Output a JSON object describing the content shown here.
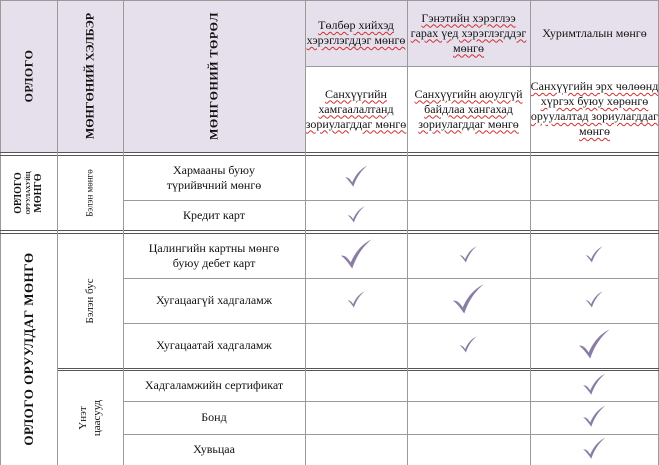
{
  "colors": {
    "header_bg": "#e6e0ec",
    "check": "#8a7ca3",
    "grid": "#9a9a9a"
  },
  "headers": {
    "income": "ОРЛОГО",
    "money_tool": "МӨНГӨНИЙ ХЭЛБЭР",
    "money_type": "МӨНГӨНИЙ ТӨРӨЛ",
    "col1_top": "Төлбөр хийхэд хэрэглэгддэг мөнгө",
    "col2_top": "Гэнэтийн хэрэглээ гарах үед хэрэглэгддэг мөнгө",
    "col3_top": "Хуримтлалын мөнгө",
    "col1_sub": "Санхүүгийн хамгаалалтанд зориулагддаг мөнгө",
    "col2_sub": "Санхүүгийн аюулгүй байдлаа хангахад зориулагддаг мөнгө",
    "col3_sub": "Санхүүгийн эрх чөлөөнд хүргэх буюу хөрөнгө оруулалтад зориулагддаг мөнгө"
  },
  "groups": {
    "income_money_line1": "ОРЛОГО",
    "income_money_line2": "ОРУУЛАХУЙЦ",
    "income_money_line3": "МӨНГӨ",
    "investing_money": "ОРЛОГО ОРУУЛДАГ МӨНГӨ",
    "cash": "Бэлэн мөнгө",
    "non_cash": "Бэлэн бус",
    "securities": "Үнэт цаасууд"
  },
  "rows": [
    {
      "label": "Хармааны буюу түрийвчний мөнгө",
      "checks": [
        "medium",
        "none",
        "none"
      ]
    },
    {
      "label": "Кредит карт",
      "checks": [
        "small",
        "none",
        "none"
      ]
    },
    {
      "label": "Цалингийн картны мөнгө буюу дебет карт",
      "checks": [
        "large",
        "small",
        "small"
      ]
    },
    {
      "label": "Хугацаагүй хадгаламж",
      "checks": [
        "small",
        "large",
        "small"
      ]
    },
    {
      "label": "Хугацаатай хадгаламж",
      "checks": [
        "none",
        "small",
        "large"
      ]
    },
    {
      "label": "Хадгаламжийн сертификат",
      "checks": [
        "none",
        "none",
        "medium"
      ]
    },
    {
      "label": "Бонд",
      "checks": [
        "none",
        "none",
        "medium"
      ]
    },
    {
      "label": "Хувьцаа",
      "checks": [
        "none",
        "none",
        "medium"
      ]
    }
  ]
}
